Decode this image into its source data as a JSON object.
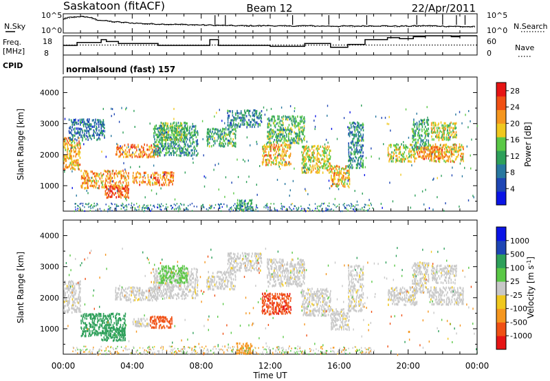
{
  "header": {
    "station": "Saskatoon (fitACF)",
    "beam": "Beam 12",
    "date": "22/Apr/2011",
    "cpid_label": "CPID",
    "cpid_value": "normalsound (fast) 157"
  },
  "noise_panel": {
    "left_label": "N.Sky",
    "right_label": "N.Search",
    "left_ticks": [
      "10^5",
      "10^0"
    ],
    "right_ticks": [
      "10^5",
      "10^0"
    ]
  },
  "freq_panel": {
    "left_label_line1": "Freq.",
    "left_label_line2": "[MHz]",
    "right_label": "Nave",
    "left_ticks": [
      "18",
      "8"
    ],
    "right_ticks": [
      "60",
      "0"
    ]
  },
  "colors": {
    "power": [
      "#0a14e6",
      "#1e46b4",
      "#2878a0",
      "#2ea05a",
      "#5ac846",
      "#f0c81e",
      "#f5961e",
      "#f05014",
      "#e61414"
    ],
    "velocity": [
      "#e61414",
      "#f05014",
      "#f5961e",
      "#f0c81e",
      "#c8c8c8",
      "#5ac846",
      "#2ea05a",
      "#1e46b4",
      "#0a14e6"
    ]
  },
  "chart_data": [
    {
      "type": "line",
      "name": "noise",
      "series": [
        {
          "name": "N.Sky",
          "x": [
            0,
            0.3,
            1,
            1.5,
            2,
            3,
            4,
            5,
            6,
            7,
            8,
            9,
            10,
            11,
            12,
            13,
            14,
            15,
            16,
            17,
            18,
            19,
            20,
            21,
            22,
            23,
            24
          ],
          "values": [
            3.6,
            4.0,
            4.3,
            4.1,
            3.4,
            2.9,
            2.6,
            2.4,
            2.3,
            2.2,
            2.1,
            2.0,
            1.9,
            1.9,
            1.9,
            1.8,
            1.9,
            1.8,
            1.8,
            1.8,
            1.9,
            1.8,
            1.8,
            1.9,
            1.8,
            1.7,
            1.6
          ]
        },
        {
          "name": "N.Search",
          "x": [
            0,
            0.3,
            1,
            1.5,
            2,
            3,
            4,
            5,
            6,
            7,
            8,
            9,
            10,
            11,
            12,
            13,
            14,
            15,
            16,
            17,
            18,
            19,
            20,
            21,
            22,
            23,
            24
          ],
          "values": [
            3.5,
            3.9,
            4.2,
            4.0,
            3.3,
            2.8,
            2.5,
            2.3,
            2.2,
            2.1,
            2.0,
            1.9,
            1.8,
            1.8,
            1.8,
            1.7,
            1.8,
            1.7,
            1.7,
            1.7,
            1.8,
            1.7,
            1.7,
            1.8,
            1.7,
            1.6,
            1.5
          ]
        }
      ],
      "y_axis_left": "log",
      "ylim": [
        0,
        5
      ]
    },
    {
      "type": "line",
      "name": "frequency_nave",
      "series": [
        {
          "name": "Freq.",
          "x": [
            0,
            0.8,
            2.2,
            2.5,
            3.2,
            5.5,
            8.5,
            9,
            10,
            12,
            14,
            15.5,
            16.5,
            17.5,
            18.8,
            19.5,
            20.3,
            21,
            22.5,
            23,
            24
          ],
          "values": [
            13,
            14.5,
            16,
            15,
            14,
            13,
            16,
            13,
            13,
            12.5,
            14,
            12,
            13.5,
            16,
            17,
            16.5,
            17.5,
            18,
            17.5,
            18,
            18
          ]
        },
        {
          "name": "Nave",
          "x": [
            0,
            24
          ],
          "values": [
            31,
            31
          ]
        }
      ],
      "ylim_left": [
        8,
        18
      ],
      "ylim_right": [
        0,
        60
      ]
    },
    {
      "type": "heatmap",
      "name": "power",
      "ylabel": "Slant Range [km]",
      "xlabel": "Time UT",
      "xlim": [
        0,
        24
      ],
      "ylim": [
        180,
        4500
      ],
      "x_ticks": [
        "00:00",
        "04:00",
        "08:00",
        "12:00",
        "16:00",
        "20:00",
        "00:00"
      ],
      "y_ticks": [
        1000,
        2000,
        3000,
        4000
      ],
      "colorbar": {
        "label": "Power [dB]",
        "ticks": [
          4,
          8,
          12,
          16,
          20,
          24,
          28
        ],
        "range": [
          0,
          30
        ]
      },
      "regions": [
        {
          "t0": 0.0,
          "t1": 1.0,
          "r0": 1550,
          "r1": 2600,
          "level": 20
        },
        {
          "t0": 0.3,
          "t1": 2.4,
          "r0": 2500,
          "r1": 3200,
          "level": 8
        },
        {
          "t0": 1.0,
          "t1": 3.8,
          "r0": 950,
          "r1": 1550,
          "level": 21
        },
        {
          "t0": 2.4,
          "t1": 3.8,
          "r0": 650,
          "r1": 1050,
          "level": 25
        },
        {
          "t0": 3.0,
          "t1": 5.5,
          "r0": 1950,
          "r1": 2400,
          "level": 22
        },
        {
          "t0": 4.0,
          "t1": 6.4,
          "r0": 1050,
          "r1": 1500,
          "level": 23
        },
        {
          "t0": 5.2,
          "t1": 7.8,
          "r0": 2000,
          "r1": 3000,
          "level": 11
        },
        {
          "t0": 5.5,
          "t1": 7.2,
          "r0": 2500,
          "r1": 3100,
          "level": 14
        },
        {
          "t0": 8.3,
          "t1": 10.0,
          "r0": 2300,
          "r1": 2900,
          "level": 13
        },
        {
          "t0": 9.5,
          "t1": 11.5,
          "r0": 2900,
          "r1": 3500,
          "level": 9
        },
        {
          "t0": 10.0,
          "t1": 11.0,
          "r0": 220,
          "r1": 600,
          "level": 12
        },
        {
          "t0": 11.5,
          "t1": 13.2,
          "r0": 1700,
          "r1": 2400,
          "level": 20
        },
        {
          "t0": 11.8,
          "t1": 14.0,
          "r0": 2400,
          "r1": 3300,
          "level": 13
        },
        {
          "t0": 13.8,
          "t1": 15.5,
          "r0": 1450,
          "r1": 2350,
          "level": 18
        },
        {
          "t0": 15.5,
          "t1": 16.6,
          "r0": 1000,
          "r1": 1700,
          "level": 20
        },
        {
          "t0": 16.5,
          "t1": 17.4,
          "r0": 1600,
          "r1": 3100,
          "level": 10
        },
        {
          "t0": 18.8,
          "t1": 20.5,
          "r0": 1800,
          "r1": 2400,
          "level": 17
        },
        {
          "t0": 20.2,
          "t1": 21.2,
          "r0": 2200,
          "r1": 3200,
          "level": 12
        },
        {
          "t0": 21.2,
          "t1": 23.2,
          "r0": 1800,
          "r1": 2400,
          "level": 20
        },
        {
          "t0": 21.3,
          "t1": 22.8,
          "r0": 2500,
          "r1": 3100,
          "level": 17
        },
        {
          "t0": 20.5,
          "t1": 22.0,
          "r0": 1900,
          "r1": 2300,
          "level": 22
        }
      ]
    },
    {
      "type": "heatmap",
      "name": "velocity",
      "ylabel": "Slant Range [km]",
      "xlabel": "Time UT",
      "xlim": [
        0,
        24
      ],
      "ylim": [
        180,
        4500
      ],
      "x_ticks": [
        "00:00",
        "04:00",
        "08:00",
        "12:00",
        "16:00",
        "20:00",
        "00:00"
      ],
      "y_ticks": [
        1000,
        2000,
        3000,
        4000
      ],
      "colorbar": {
        "label": "Velocity [m s^-1]",
        "ticks": [
          "1000",
          "500",
          "100",
          "25",
          "-25",
          "-100",
          "-500",
          "-1000"
        ]
      },
      "regions": [
        {
          "t0": 0.0,
          "t1": 1.0,
          "r0": 1550,
          "r1": 2600,
          "vel": 0
        },
        {
          "t0": 1.0,
          "t1": 3.6,
          "r0": 800,
          "r1": 1550,
          "vel": 250
        },
        {
          "t0": 2.2,
          "t1": 3.6,
          "r0": 650,
          "r1": 1100,
          "vel": 350
        },
        {
          "t0": 3.0,
          "t1": 5.5,
          "r0": 1950,
          "r1": 2400,
          "vel": 0
        },
        {
          "t0": 4.0,
          "t1": 5.0,
          "r0": 1100,
          "r1": 1400,
          "vel": 0
        },
        {
          "t0": 5.0,
          "t1": 6.3,
          "r0": 1050,
          "r1": 1450,
          "vel": -200
        },
        {
          "t0": 5.2,
          "t1": 7.8,
          "r0": 2000,
          "r1": 3000,
          "vel": 0
        },
        {
          "t0": 5.5,
          "t1": 7.2,
          "r0": 2500,
          "r1": 3100,
          "vel": 60
        },
        {
          "t0": 8.3,
          "t1": 10.0,
          "r0": 2300,
          "r1": 2900,
          "vel": 0
        },
        {
          "t0": 9.5,
          "t1": 11.5,
          "r0": 2900,
          "r1": 3500,
          "vel": 0
        },
        {
          "t0": 10.0,
          "t1": 11.0,
          "r0": 220,
          "r1": 600,
          "vel": -60
        },
        {
          "t0": 11.5,
          "t1": 13.2,
          "r0": 1500,
          "r1": 2200,
          "vel": -450
        },
        {
          "t0": 11.8,
          "t1": 14.0,
          "r0": 2400,
          "r1": 3300,
          "vel": 0
        },
        {
          "t0": 13.8,
          "t1": 15.5,
          "r0": 1450,
          "r1": 2350,
          "vel": 0
        },
        {
          "t0": 15.5,
          "t1": 16.6,
          "r0": 1000,
          "r1": 1700,
          "vel": 0
        },
        {
          "t0": 16.5,
          "t1": 17.4,
          "r0": 1600,
          "r1": 3100,
          "vel": 0
        },
        {
          "t0": 18.8,
          "t1": 20.5,
          "r0": 1800,
          "r1": 2400,
          "vel": 0
        },
        {
          "t0": 20.2,
          "t1": 21.2,
          "r0": 2200,
          "r1": 3200,
          "vel": 0
        },
        {
          "t0": 21.2,
          "t1": 23.2,
          "r0": 1800,
          "r1": 2400,
          "vel": 0
        },
        {
          "t0": 21.3,
          "t1": 22.8,
          "r0": 2500,
          "r1": 3100,
          "vel": 0
        }
      ]
    }
  ]
}
